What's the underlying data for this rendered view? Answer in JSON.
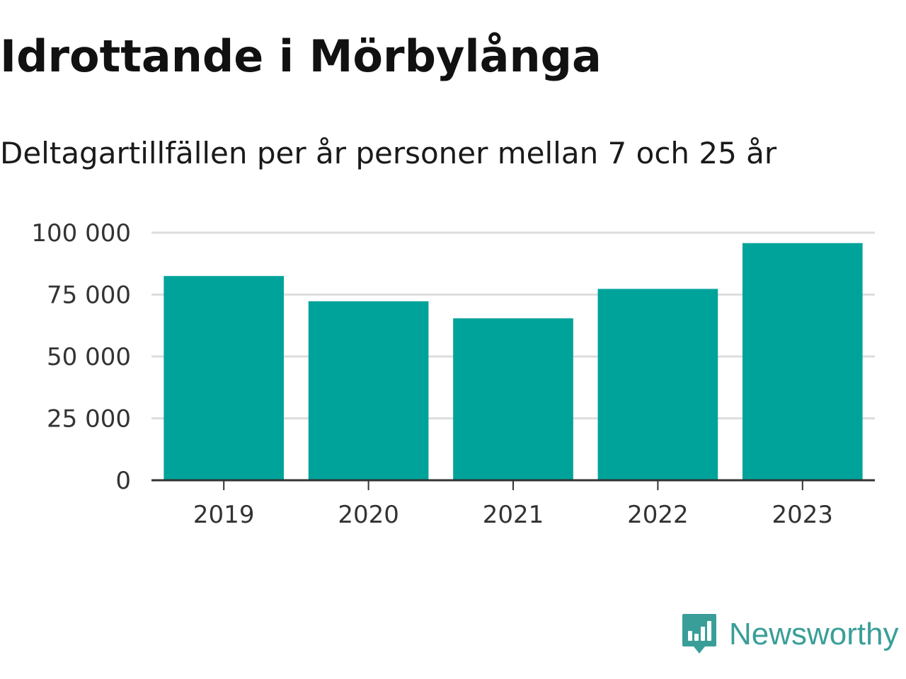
{
  "title": "Idrottande i Mörbylånga",
  "subtitle": "Deltagartillfällen per år personer mellan 7 och 25 år",
  "brand": {
    "name": "Newsworthy",
    "color": "#3a9e98",
    "icon": "bar-chart-speech-bubble-icon"
  },
  "chart_data": {
    "type": "bar",
    "categories": [
      "2019",
      "2020",
      "2021",
      "2022",
      "2023"
    ],
    "values": [
      82500,
      72300,
      65400,
      77300,
      95800
    ],
    "ylim": [
      0,
      100000
    ],
    "yticks": [
      0,
      25000,
      50000,
      75000,
      100000
    ],
    "ytick_labels": [
      "0",
      "25 000",
      "50 000",
      "75 000",
      "100 000"
    ],
    "grid": true,
    "bar_color": "#00a39a",
    "grid_color": "#dddddd",
    "axis_color": "#333333"
  }
}
